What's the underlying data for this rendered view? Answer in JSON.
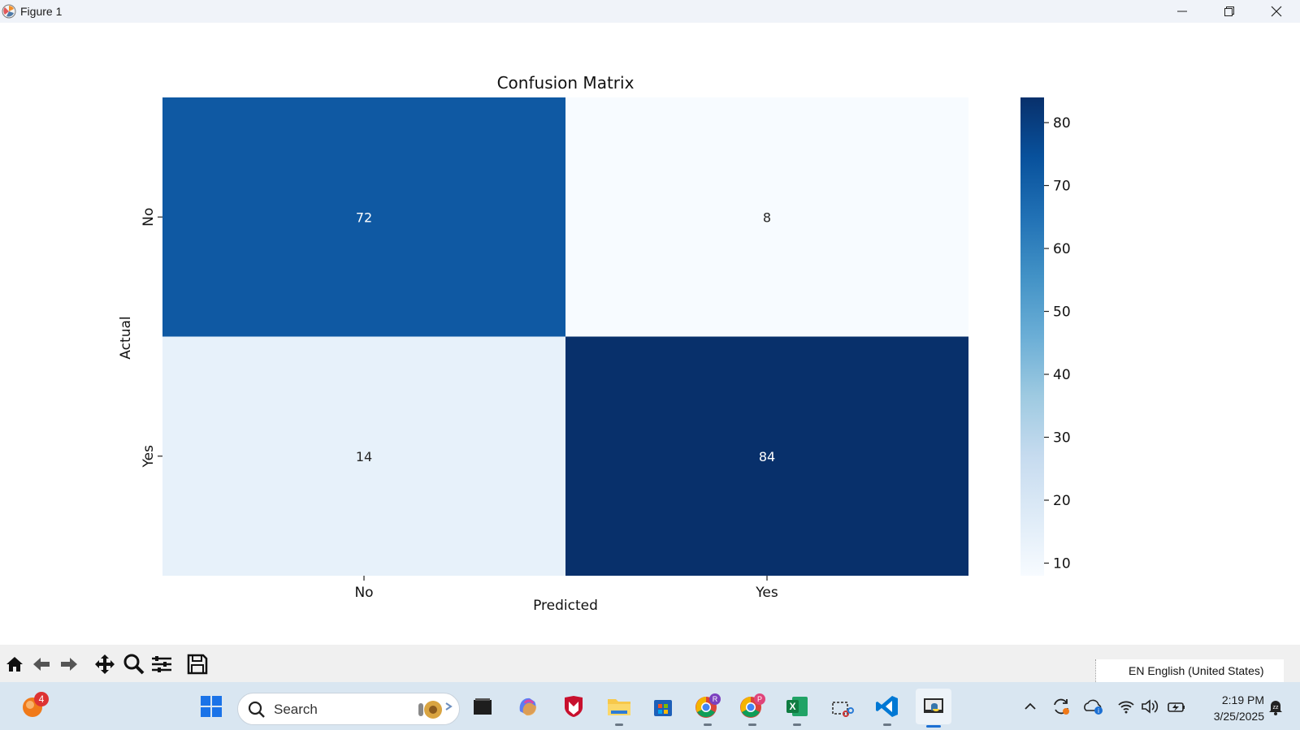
{
  "window": {
    "title": "Figure 1"
  },
  "chart_data": {
    "type": "heatmap",
    "title": "Confusion Matrix",
    "xlabel": "Predicted",
    "ylabel": "Actual",
    "x_categories": [
      "No",
      "Yes"
    ],
    "y_categories": [
      "No",
      "Yes"
    ],
    "values": [
      [
        72,
        8
      ],
      [
        14,
        84
      ]
    ],
    "colormap": "Blues",
    "colorbar": {
      "min": 8,
      "max": 84,
      "ticks": [
        10,
        20,
        30,
        40,
        50,
        60,
        70,
        80
      ]
    },
    "annotations": true
  },
  "toolbar": {
    "tools": [
      "home-icon",
      "back-icon",
      "forward-icon",
      "pan-icon",
      "zoom-icon",
      "configure-icon",
      "save-icon"
    ]
  },
  "language_bar": {
    "text": "EN English (United States)"
  },
  "taskbar": {
    "search_label": "Search",
    "notification_count": "4",
    "clock_time": "2:19 PM",
    "clock_date": "3/25/2025",
    "pinned": [
      "windows-start",
      "file-manager",
      "copilot",
      "mcafee",
      "file-explorer",
      "microsoft-store",
      "chrome-profile-r",
      "chrome-profile-p",
      "excel",
      "snipping-tool",
      "vscode",
      "python"
    ]
  },
  "colors": {
    "titlebar_bg": "#f0f3f9",
    "taskbar_bg": "#d9e6f1",
    "toolbar_bg": "#f0f0f0"
  }
}
